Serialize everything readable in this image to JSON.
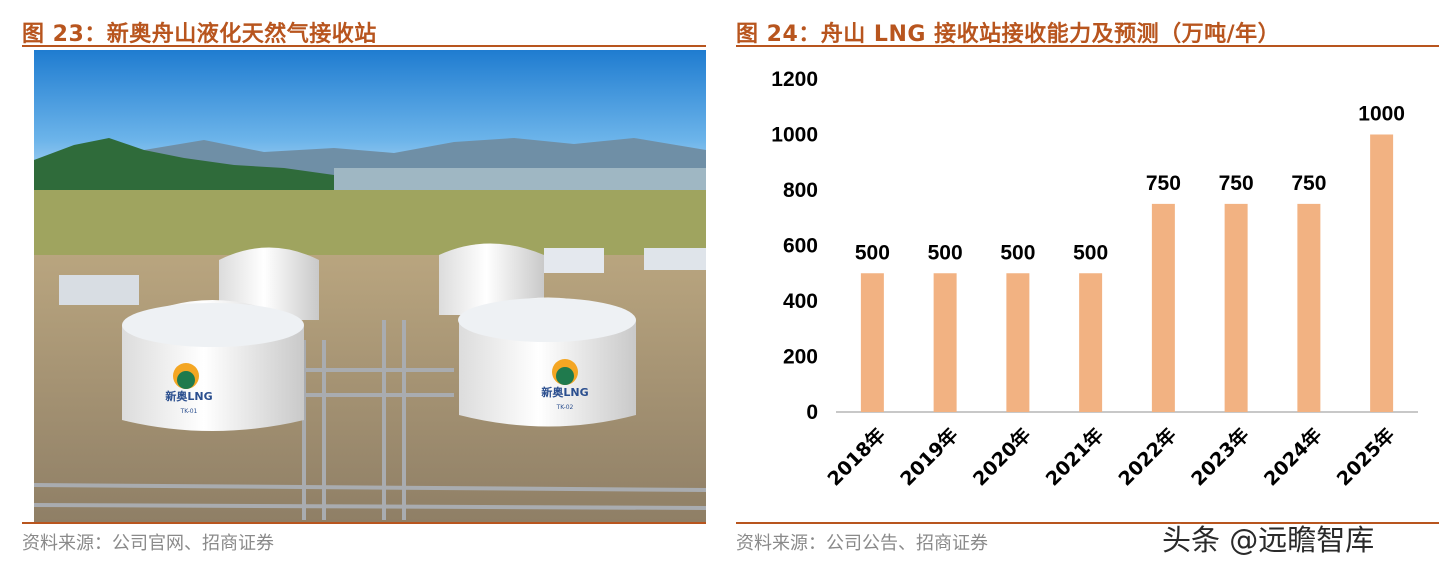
{
  "left": {
    "title": "图 23：新奥舟山液化天然气接收站",
    "source": "资料来源：公司官网、招商证券",
    "photo_logo_text": "新奥LNG",
    "tank_labels": [
      "TK-01",
      "TK-02"
    ]
  },
  "right": {
    "title": "图 24：舟山 LNG 接收站接收能力及预测（万吨/年）",
    "source": "资料来源：公司公告、招商证券"
  },
  "watermark": "头条 @远瞻智库",
  "colors": {
    "title": "#b8551e",
    "bar": "#f2b282",
    "axis": "#c8c8c8"
  },
  "chart_data": {
    "type": "bar",
    "title": "舟山 LNG 接收站接收能力及预测（万吨/年）",
    "categories": [
      "2018年",
      "2019年",
      "2020年",
      "2021年",
      "2022年",
      "2023年",
      "2024年",
      "2025年"
    ],
    "values": [
      500,
      500,
      500,
      500,
      750,
      750,
      750,
      1000
    ],
    "ylim": [
      0,
      1200
    ],
    "yticks": [
      0,
      200,
      400,
      600,
      800,
      1000,
      1200
    ],
    "xlabel": "",
    "ylabel": "",
    "grid": false,
    "legend": "none",
    "data_labels": true
  }
}
